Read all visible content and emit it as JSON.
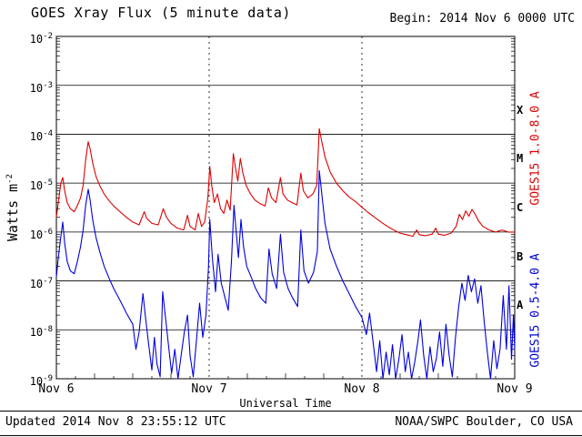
{
  "header": {
    "begin": "Begin:  2014 Nov 6 0000 UTC"
  },
  "footer": {
    "updated": "Updated 2014 Nov 8 23:55:12 UTC",
    "source": "NOAA/SWPC Boulder, CO USA"
  },
  "chart_data": {
    "type": "line",
    "title": "GOES Xray Flux (5 minute data)",
    "x_label": "Universal Time",
    "y_label_base": "Watts m",
    "y_label_exp": "-2",
    "x_range": [
      0,
      72
    ],
    "x_ticks": [
      {
        "t": 0,
        "label": "Nov 6"
      },
      {
        "t": 24,
        "label": "Nov 7"
      },
      {
        "t": 48,
        "label": "Nov 8"
      },
      {
        "t": 72,
        "label": "Nov 9"
      }
    ],
    "day_line_hours": [
      24,
      48
    ],
    "y_exp_range": [
      -9,
      -2
    ],
    "y_tick_exponents": [
      -2,
      -3,
      -4,
      -5,
      -6,
      -7,
      -8,
      -9
    ],
    "flare_classes": [
      {
        "label": "X",
        "center_exp": -3.5
      },
      {
        "label": "M",
        "center_exp": -4.5
      },
      {
        "label": "C",
        "center_exp": -5.5
      },
      {
        "label": "B",
        "center_exp": -6.5
      },
      {
        "label": "A",
        "center_exp": -7.5
      }
    ],
    "grid": true,
    "legend_position": "right-rotated",
    "series": [
      {
        "name": "GOES15 1.0-8.0 A",
        "color": "#dd0000",
        "points": [
          [
            0,
            2e-06
          ],
          [
            0.3,
            4e-06
          ],
          [
            0.7,
            1e-05
          ],
          [
            1.0,
            1.3e-05
          ],
          [
            1.3,
            7e-06
          ],
          [
            1.7,
            4e-06
          ],
          [
            2.2,
            3e-06
          ],
          [
            2.8,
            2.6e-06
          ],
          [
            3.3,
            3.5e-06
          ],
          [
            3.8,
            5e-06
          ],
          [
            4.2,
            9e-06
          ],
          [
            4.6,
            3e-05
          ],
          [
            5.0,
            7e-05
          ],
          [
            5.3,
            5e-05
          ],
          [
            5.7,
            2.6e-05
          ],
          [
            6.2,
            1.4e-05
          ],
          [
            6.8,
            9e-06
          ],
          [
            7.5,
            6e-06
          ],
          [
            8.2,
            4.5e-06
          ],
          [
            9.0,
            3.4e-06
          ],
          [
            10.0,
            2.6e-06
          ],
          [
            11.0,
            2e-06
          ],
          [
            12.0,
            1.6e-06
          ],
          [
            13.0,
            1.4e-06
          ],
          [
            13.8,
            2.6e-06
          ],
          [
            14.2,
            1.9e-06
          ],
          [
            15.0,
            1.5e-06
          ],
          [
            16.0,
            1.4e-06
          ],
          [
            16.8,
            3e-06
          ],
          [
            17.3,
            2e-06
          ],
          [
            18.0,
            1.5e-06
          ],
          [
            19.0,
            1.2e-06
          ],
          [
            20.0,
            1.1e-06
          ],
          [
            20.6,
            2.2e-06
          ],
          [
            21.0,
            1.3e-06
          ],
          [
            21.8,
            1.1e-06
          ],
          [
            22.3,
            2.4e-06
          ],
          [
            22.8,
            1.3e-06
          ],
          [
            23.3,
            1.6e-06
          ],
          [
            23.8,
            5e-06
          ],
          [
            24.1,
            2.2e-05
          ],
          [
            24.4,
            9e-06
          ],
          [
            24.8,
            4e-06
          ],
          [
            25.3,
            6e-06
          ],
          [
            25.8,
            3e-06
          ],
          [
            26.3,
            2.4e-06
          ],
          [
            26.8,
            4.5e-06
          ],
          [
            27.3,
            2.8e-06
          ],
          [
            27.8,
            4e-05
          ],
          [
            28.1,
            2.2e-05
          ],
          [
            28.5,
            1.1e-05
          ],
          [
            28.9,
            3.2e-05
          ],
          [
            29.3,
            1.6e-05
          ],
          [
            29.8,
            9e-06
          ],
          [
            30.5,
            6e-06
          ],
          [
            31.2,
            4.5e-06
          ],
          [
            32.0,
            3.8e-06
          ],
          [
            32.8,
            3.4e-06
          ],
          [
            33.3,
            8e-06
          ],
          [
            33.8,
            5e-06
          ],
          [
            34.5,
            4e-06
          ],
          [
            35.2,
            1.3e-05
          ],
          [
            35.6,
            6e-06
          ],
          [
            36.3,
            4.5e-06
          ],
          [
            37.0,
            4e-06
          ],
          [
            37.8,
            3.6e-06
          ],
          [
            38.4,
            1.6e-05
          ],
          [
            38.8,
            7e-06
          ],
          [
            39.5,
            5e-06
          ],
          [
            40.3,
            6e-06
          ],
          [
            40.9,
            9e-06
          ],
          [
            41.3,
            0.00013
          ],
          [
            41.7,
            7e-05
          ],
          [
            42.2,
            3.4e-05
          ],
          [
            43.0,
            1.7e-05
          ],
          [
            44.0,
            1e-05
          ],
          [
            45.0,
            7e-06
          ],
          [
            46.0,
            5.2e-06
          ],
          [
            47.0,
            4.2e-06
          ],
          [
            48.0,
            3.2e-06
          ],
          [
            49.0,
            2.5e-06
          ],
          [
            50.0,
            2e-06
          ],
          [
            51.0,
            1.6e-06
          ],
          [
            52.0,
            1.3e-06
          ],
          [
            53.0,
            1.1e-06
          ],
          [
            54.0,
            9.5e-07
          ],
          [
            55.0,
            8.8e-07
          ],
          [
            56.0,
            8.2e-07
          ],
          [
            56.6,
            1.1e-06
          ],
          [
            57.0,
            8.8e-07
          ],
          [
            58.0,
            8.4e-07
          ],
          [
            59.0,
            9e-07
          ],
          [
            59.6,
            1.2e-06
          ],
          [
            60.0,
            9e-07
          ],
          [
            61.0,
            8.6e-07
          ],
          [
            62.0,
            9.5e-07
          ],
          [
            62.8,
            1.3e-06
          ],
          [
            63.3,
            2.3e-06
          ],
          [
            63.8,
            1.8e-06
          ],
          [
            64.3,
            2.7e-06
          ],
          [
            64.8,
            2.1e-06
          ],
          [
            65.3,
            2.9e-06
          ],
          [
            65.8,
            2.3e-06
          ],
          [
            66.3,
            1.7e-06
          ],
          [
            67.0,
            1.3e-06
          ],
          [
            68.0,
            1.1e-06
          ],
          [
            69.0,
            1e-06
          ],
          [
            70.0,
            1.1e-06
          ],
          [
            71.0,
            1e-06
          ],
          [
            72.0,
            1e-06
          ]
        ]
      },
      {
        "name": "GOES15 0.5-4.0 A",
        "color": "#0000dd",
        "points": [
          [
            0,
            1.2e-07
          ],
          [
            0.3,
            3e-07
          ],
          [
            0.7,
            8e-07
          ],
          [
            1.0,
            1.6e-06
          ],
          [
            1.3,
            6e-07
          ],
          [
            1.7,
            2.5e-07
          ],
          [
            2.2,
            1.6e-07
          ],
          [
            2.8,
            1.4e-07
          ],
          [
            3.3,
            2.5e-07
          ],
          [
            3.8,
            5e-07
          ],
          [
            4.2,
            1.1e-06
          ],
          [
            4.6,
            3.5e-06
          ],
          [
            5.0,
            7.5e-06
          ],
          [
            5.3,
            4.5e-06
          ],
          [
            5.7,
            1.8e-06
          ],
          [
            6.2,
            8e-07
          ],
          [
            6.8,
            4e-07
          ],
          [
            7.5,
            2e-07
          ],
          [
            8.2,
            1.2e-07
          ],
          [
            9.0,
            7e-08
          ],
          [
            10.0,
            4e-08
          ],
          [
            11.0,
            2.2e-08
          ],
          [
            12.0,
            1.3e-08
          ],
          [
            12.5,
            4e-09
          ],
          [
            13.0,
            9e-09
          ],
          [
            13.6,
            5.5e-08
          ],
          [
            14.0,
            1.8e-08
          ],
          [
            14.5,
            5e-09
          ],
          [
            15.0,
            1.5e-09
          ],
          [
            15.4,
            7e-09
          ],
          [
            15.8,
            2e-09
          ],
          [
            16.3,
            1.1e-09
          ],
          [
            16.7,
            6e-08
          ],
          [
            17.1,
            2e-08
          ],
          [
            17.6,
            5e-09
          ],
          [
            18.1,
            1.3e-09
          ],
          [
            18.6,
            4e-09
          ],
          [
            19.1,
            1e-09
          ],
          [
            19.6,
            3e-09
          ],
          [
            20.1,
            9e-09
          ],
          [
            20.6,
            2e-08
          ],
          [
            21.0,
            3e-09
          ],
          [
            21.5,
            1.1e-09
          ],
          [
            22.0,
            6e-09
          ],
          [
            22.5,
            3.5e-08
          ],
          [
            23.0,
            7e-09
          ],
          [
            23.5,
            2e-08
          ],
          [
            23.9,
            2e-07
          ],
          [
            24.1,
            1.8e-06
          ],
          [
            24.5,
            3e-07
          ],
          [
            25.0,
            6e-08
          ],
          [
            25.4,
            3.5e-07
          ],
          [
            25.9,
            9e-08
          ],
          [
            26.5,
            4.5e-08
          ],
          [
            27.0,
            2.5e-08
          ],
          [
            27.5,
            2.5e-07
          ],
          [
            27.9,
            3.5e-06
          ],
          [
            28.2,
            1.2e-06
          ],
          [
            28.6,
            3e-07
          ],
          [
            29.0,
            1.8e-06
          ],
          [
            29.4,
            5e-07
          ],
          [
            29.9,
            2e-07
          ],
          [
            30.6,
            1.2e-07
          ],
          [
            31.3,
            7e-08
          ],
          [
            32.1,
            4.5e-08
          ],
          [
            32.9,
            3.5e-08
          ],
          [
            33.4,
            4.5e-07
          ],
          [
            33.9,
            1.4e-07
          ],
          [
            34.6,
            7e-08
          ],
          [
            35.2,
            9e-07
          ],
          [
            35.7,
            1.5e-07
          ],
          [
            36.4,
            7e-08
          ],
          [
            37.1,
            4.5e-08
          ],
          [
            37.9,
            3e-08
          ],
          [
            38.4,
            1.1e-06
          ],
          [
            38.9,
            1.6e-07
          ],
          [
            39.6,
            9e-08
          ],
          [
            40.4,
            1.5e-07
          ],
          [
            41.0,
            4e-07
          ],
          [
            41.3,
            1.8e-05
          ],
          [
            41.7,
            6e-06
          ],
          [
            42.2,
            1.5e-06
          ],
          [
            43.0,
            4.5e-07
          ],
          [
            44.0,
            2e-07
          ],
          [
            45.0,
            1e-07
          ],
          [
            46.0,
            5.5e-08
          ],
          [
            47.0,
            3e-08
          ],
          [
            48.0,
            1.8e-08
          ],
          [
            48.7,
            8e-09
          ],
          [
            49.2,
            2.2e-08
          ],
          [
            49.8,
            5e-09
          ],
          [
            50.3,
            1.4e-09
          ],
          [
            50.8,
            6e-09
          ],
          [
            51.3,
            1e-09
          ],
          [
            51.8,
            3.5e-09
          ],
          [
            52.3,
            1.2e-09
          ],
          [
            52.8,
            5e-09
          ],
          [
            53.3,
            1e-09
          ],
          [
            53.8,
            2.5e-09
          ],
          [
            54.3,
            8e-09
          ],
          [
            54.8,
            1.4e-09
          ],
          [
            55.3,
            3.5e-09
          ],
          [
            55.8,
            1e-09
          ],
          [
            56.3,
            2.2e-09
          ],
          [
            56.8,
            6e-09
          ],
          [
            57.2,
            1.6e-08
          ],
          [
            57.7,
            3e-09
          ],
          [
            58.2,
            1e-09
          ],
          [
            58.7,
            4.5e-09
          ],
          [
            59.2,
            1.4e-09
          ],
          [
            59.7,
            2.6e-09
          ],
          [
            60.2,
            9e-09
          ],
          [
            60.7,
            1.8e-09
          ],
          [
            61.2,
            1.3e-08
          ],
          [
            61.7,
            3e-09
          ],
          [
            62.2,
            1.1e-09
          ],
          [
            62.7,
            7e-09
          ],
          [
            63.2,
            3e-08
          ],
          [
            63.7,
            9e-08
          ],
          [
            64.2,
            4e-08
          ],
          [
            64.7,
            1.3e-07
          ],
          [
            65.2,
            6e-08
          ],
          [
            65.7,
            1.1e-07
          ],
          [
            66.2,
            3.5e-08
          ],
          [
            66.7,
            8e-08
          ],
          [
            67.2,
            1.5e-08
          ],
          [
            67.7,
            3.5e-09
          ],
          [
            68.2,
            1e-09
          ],
          [
            68.7,
            6e-09
          ],
          [
            69.2,
            1.6e-09
          ],
          [
            69.7,
            4e-09
          ],
          [
            70.2,
            5e-08
          ],
          [
            70.7,
            4e-09
          ],
          [
            71.1,
            8e-08
          ],
          [
            71.5,
            2.5e-09
          ],
          [
            71.8,
            2e-08
          ],
          [
            72.0,
            4e-09
          ]
        ]
      }
    ]
  }
}
